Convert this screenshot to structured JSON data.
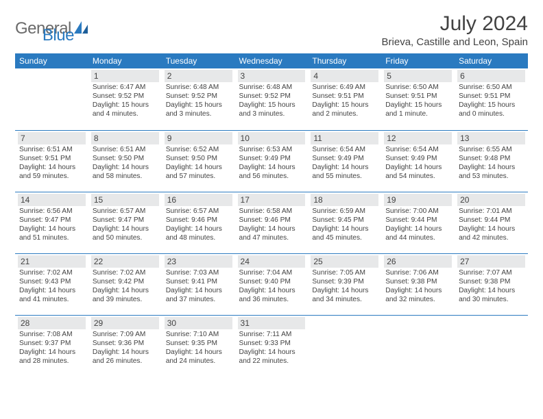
{
  "logo": {
    "word1": "General",
    "word2": "Blue"
  },
  "title": "July 2024",
  "location": "Brieva, Castille and Leon, Spain",
  "weekdays": [
    "Sunday",
    "Monday",
    "Tuesday",
    "Wednesday",
    "Thursday",
    "Friday",
    "Saturday"
  ],
  "colors": {
    "header_bg": "#2a7ac0",
    "header_text": "#ffffff",
    "daynum_bg": "#e7e8e9",
    "text": "#424242",
    "logo_gray": "#6a6a6a",
    "logo_blue": "#2a7ac0"
  },
  "days": {
    "1": {
      "num": "1",
      "sunrise": "Sunrise: 6:47 AM",
      "sunset": "Sunset: 9:52 PM",
      "day1": "Daylight: 15 hours",
      "day2": "and 4 minutes."
    },
    "2": {
      "num": "2",
      "sunrise": "Sunrise: 6:48 AM",
      "sunset": "Sunset: 9:52 PM",
      "day1": "Daylight: 15 hours",
      "day2": "and 3 minutes."
    },
    "3": {
      "num": "3",
      "sunrise": "Sunrise: 6:48 AM",
      "sunset": "Sunset: 9:52 PM",
      "day1": "Daylight: 15 hours",
      "day2": "and 3 minutes."
    },
    "4": {
      "num": "4",
      "sunrise": "Sunrise: 6:49 AM",
      "sunset": "Sunset: 9:51 PM",
      "day1": "Daylight: 15 hours",
      "day2": "and 2 minutes."
    },
    "5": {
      "num": "5",
      "sunrise": "Sunrise: 6:50 AM",
      "sunset": "Sunset: 9:51 PM",
      "day1": "Daylight: 15 hours",
      "day2": "and 1 minute."
    },
    "6": {
      "num": "6",
      "sunrise": "Sunrise: 6:50 AM",
      "sunset": "Sunset: 9:51 PM",
      "day1": "Daylight: 15 hours",
      "day2": "and 0 minutes."
    },
    "7": {
      "num": "7",
      "sunrise": "Sunrise: 6:51 AM",
      "sunset": "Sunset: 9:51 PM",
      "day1": "Daylight: 14 hours",
      "day2": "and 59 minutes."
    },
    "8": {
      "num": "8",
      "sunrise": "Sunrise: 6:51 AM",
      "sunset": "Sunset: 9:50 PM",
      "day1": "Daylight: 14 hours",
      "day2": "and 58 minutes."
    },
    "9": {
      "num": "9",
      "sunrise": "Sunrise: 6:52 AM",
      "sunset": "Sunset: 9:50 PM",
      "day1": "Daylight: 14 hours",
      "day2": "and 57 minutes."
    },
    "10": {
      "num": "10",
      "sunrise": "Sunrise: 6:53 AM",
      "sunset": "Sunset: 9:49 PM",
      "day1": "Daylight: 14 hours",
      "day2": "and 56 minutes."
    },
    "11": {
      "num": "11",
      "sunrise": "Sunrise: 6:54 AM",
      "sunset": "Sunset: 9:49 PM",
      "day1": "Daylight: 14 hours",
      "day2": "and 55 minutes."
    },
    "12": {
      "num": "12",
      "sunrise": "Sunrise: 6:54 AM",
      "sunset": "Sunset: 9:49 PM",
      "day1": "Daylight: 14 hours",
      "day2": "and 54 minutes."
    },
    "13": {
      "num": "13",
      "sunrise": "Sunrise: 6:55 AM",
      "sunset": "Sunset: 9:48 PM",
      "day1": "Daylight: 14 hours",
      "day2": "and 53 minutes."
    },
    "14": {
      "num": "14",
      "sunrise": "Sunrise: 6:56 AM",
      "sunset": "Sunset: 9:47 PM",
      "day1": "Daylight: 14 hours",
      "day2": "and 51 minutes."
    },
    "15": {
      "num": "15",
      "sunrise": "Sunrise: 6:57 AM",
      "sunset": "Sunset: 9:47 PM",
      "day1": "Daylight: 14 hours",
      "day2": "and 50 minutes."
    },
    "16": {
      "num": "16",
      "sunrise": "Sunrise: 6:57 AM",
      "sunset": "Sunset: 9:46 PM",
      "day1": "Daylight: 14 hours",
      "day2": "and 48 minutes."
    },
    "17": {
      "num": "17",
      "sunrise": "Sunrise: 6:58 AM",
      "sunset": "Sunset: 9:46 PM",
      "day1": "Daylight: 14 hours",
      "day2": "and 47 minutes."
    },
    "18": {
      "num": "18",
      "sunrise": "Sunrise: 6:59 AM",
      "sunset": "Sunset: 9:45 PM",
      "day1": "Daylight: 14 hours",
      "day2": "and 45 minutes."
    },
    "19": {
      "num": "19",
      "sunrise": "Sunrise: 7:00 AM",
      "sunset": "Sunset: 9:44 PM",
      "day1": "Daylight: 14 hours",
      "day2": "and 44 minutes."
    },
    "20": {
      "num": "20",
      "sunrise": "Sunrise: 7:01 AM",
      "sunset": "Sunset: 9:44 PM",
      "day1": "Daylight: 14 hours",
      "day2": "and 42 minutes."
    },
    "21": {
      "num": "21",
      "sunrise": "Sunrise: 7:02 AM",
      "sunset": "Sunset: 9:43 PM",
      "day1": "Daylight: 14 hours",
      "day2": "and 41 minutes."
    },
    "22": {
      "num": "22",
      "sunrise": "Sunrise: 7:02 AM",
      "sunset": "Sunset: 9:42 PM",
      "day1": "Daylight: 14 hours",
      "day2": "and 39 minutes."
    },
    "23": {
      "num": "23",
      "sunrise": "Sunrise: 7:03 AM",
      "sunset": "Sunset: 9:41 PM",
      "day1": "Daylight: 14 hours",
      "day2": "and 37 minutes."
    },
    "24": {
      "num": "24",
      "sunrise": "Sunrise: 7:04 AM",
      "sunset": "Sunset: 9:40 PM",
      "day1": "Daylight: 14 hours",
      "day2": "and 36 minutes."
    },
    "25": {
      "num": "25",
      "sunrise": "Sunrise: 7:05 AM",
      "sunset": "Sunset: 9:39 PM",
      "day1": "Daylight: 14 hours",
      "day2": "and 34 minutes."
    },
    "26": {
      "num": "26",
      "sunrise": "Sunrise: 7:06 AM",
      "sunset": "Sunset: 9:38 PM",
      "day1": "Daylight: 14 hours",
      "day2": "and 32 minutes."
    },
    "27": {
      "num": "27",
      "sunrise": "Sunrise: 7:07 AM",
      "sunset": "Sunset: 9:38 PM",
      "day1": "Daylight: 14 hours",
      "day2": "and 30 minutes."
    },
    "28": {
      "num": "28",
      "sunrise": "Sunrise: 7:08 AM",
      "sunset": "Sunset: 9:37 PM",
      "day1": "Daylight: 14 hours",
      "day2": "and 28 minutes."
    },
    "29": {
      "num": "29",
      "sunrise": "Sunrise: 7:09 AM",
      "sunset": "Sunset: 9:36 PM",
      "day1": "Daylight: 14 hours",
      "day2": "and 26 minutes."
    },
    "30": {
      "num": "30",
      "sunrise": "Sunrise: 7:10 AM",
      "sunset": "Sunset: 9:35 PM",
      "day1": "Daylight: 14 hours",
      "day2": "and 24 minutes."
    },
    "31": {
      "num": "31",
      "sunrise": "Sunrise: 7:11 AM",
      "sunset": "Sunset: 9:33 PM",
      "day1": "Daylight: 14 hours",
      "day2": "and 22 minutes."
    }
  }
}
